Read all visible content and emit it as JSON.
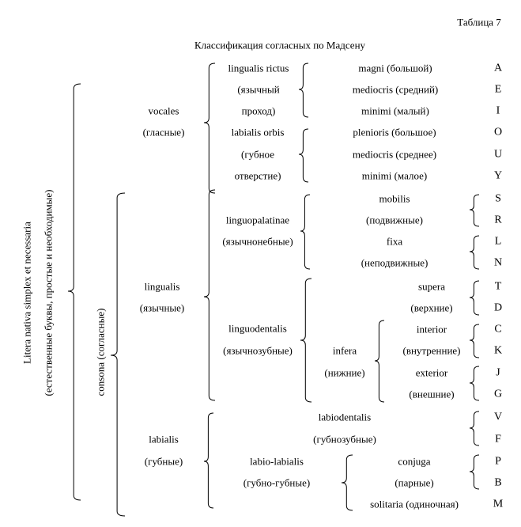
{
  "table_label": "Таблица 7",
  "title": "Классификация согласных по Мадсену",
  "root": {
    "line1": "Litera nativa simplex et necessaria",
    "line2": "(естественные буквы, простые и необходимые)"
  },
  "consona": "consona (согласные)",
  "vocales": {
    "latin": "vocales",
    "ru": "(гласные)"
  },
  "lingualis": {
    "latin": "lingualis",
    "ru": "(язычные)"
  },
  "labialis": {
    "latin": "labialis",
    "ru": "(губные)"
  },
  "lingualis_rictus": {
    "latin": "lingualis rictus",
    "ru1": "(язычный",
    "ru2": "проход)"
  },
  "labialis_orbis": {
    "latin": "labialis orbis",
    "ru1": "(губное",
    "ru2": "отверстие)"
  },
  "linguopalatinae": {
    "latin": "linguopalatinae",
    "ru": "(язычнонебные)"
  },
  "linguodentalis": {
    "latin": "linguodentalis",
    "ru": "(язычнозубные)"
  },
  "labiodentalis": {
    "latin": "labiodentalis",
    "ru": "(губнозубные)"
  },
  "labio_labialis": {
    "latin": "labio-labialis",
    "ru": "(губно-губные)"
  },
  "infera": {
    "latin": "infera",
    "ru": "(нижние)"
  },
  "rictus_items": [
    "magni (большой)",
    "mediocris (средний)",
    "minimi (малый)"
  ],
  "orbis_items": [
    "plenioris (большое)",
    "mediocris (среднее)",
    "minimi (малое)"
  ],
  "mobilis": {
    "latin": "mobilis",
    "ru": "(подвижные)"
  },
  "fixa": {
    "latin": "fixa",
    "ru": "(неподвижные)"
  },
  "supera": {
    "latin": "supera",
    "ru": "(верхние)"
  },
  "interior": {
    "latin": "interior",
    "ru": "(внутренние)"
  },
  "exterior": {
    "latin": "exterior",
    "ru": "(внешние)"
  },
  "conjuga": {
    "latin": "conjuga",
    "ru": "(парные)"
  },
  "solitaria": "solitaria (одиночная)",
  "letters": [
    "A",
    "E",
    "I",
    "O",
    "U",
    "Y",
    "S",
    "R",
    "L",
    "N",
    "T",
    "D",
    "C",
    "K",
    "J",
    "G",
    "V",
    "F",
    "P",
    "B",
    "M"
  ]
}
